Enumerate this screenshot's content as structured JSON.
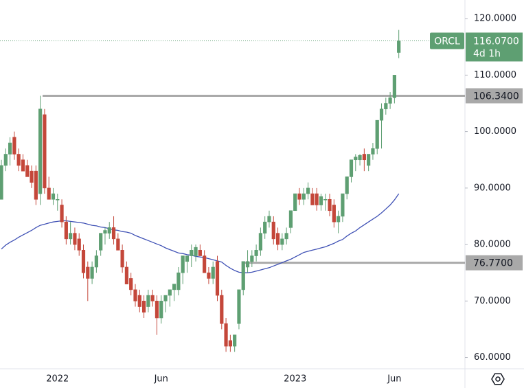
{
  "chart_data": {
    "type": "candlestick",
    "symbol": "ORCL",
    "categories": [
      null,
      null,
      null,
      null,
      null,
      null,
      null,
      null,
      null,
      null,
      null,
      null,
      null,
      "2022",
      null,
      null,
      null,
      null,
      null,
      null,
      null,
      null,
      null,
      null,
      null,
      null,
      null,
      null,
      null,
      null,
      null,
      null,
      null,
      null,
      null,
      null,
      null,
      "Jun",
      null,
      null,
      null,
      null,
      null,
      null,
      null,
      null,
      null,
      null,
      null,
      null,
      null,
      null,
      null,
      null,
      null,
      null,
      null,
      null,
      null,
      null,
      null,
      null,
      null,
      null,
      null,
      null,
      null,
      null,
      "2023",
      null,
      null,
      null,
      null,
      null,
      null,
      null,
      null,
      null,
      null,
      null,
      null,
      null,
      null,
      null,
      null,
      null,
      null,
      null,
      null,
      null,
      null,
      "Jun",
      null
    ],
    "open": [
      88,
      94,
      96,
      99,
      96,
      95,
      94,
      93,
      93,
      89,
      103,
      90,
      88,
      88,
      87,
      84,
      81,
      82,
      81,
      79,
      76,
      74,
      76,
      79,
      82,
      82,
      83,
      81,
      79,
      76,
      74,
      72,
      71,
      70,
      69,
      71,
      70,
      67,
      70,
      71,
      72,
      72,
      75,
      77,
      78,
      78,
      79,
      78,
      75,
      74,
      77,
      71,
      66,
      63,
      62,
      66,
      72,
      76,
      77,
      78,
      79,
      82,
      84,
      84,
      82,
      80,
      81,
      83,
      86,
      89,
      88,
      89,
      89,
      89,
      87,
      88,
      88,
      87,
      84,
      85,
      89,
      92,
      95,
      95,
      96,
      94,
      96,
      97,
      102,
      104,
      105,
      106,
      114
    ],
    "high": [
      95,
      97,
      99,
      100,
      97,
      96,
      95,
      94,
      94,
      106.34,
      104,
      92,
      90,
      89,
      88,
      85,
      84,
      83,
      82,
      80,
      77,
      77,
      79,
      82,
      83,
      84,
      85,
      82,
      80,
      77,
      75,
      73,
      72,
      71,
      72,
      72,
      71,
      71,
      71,
      72,
      73,
      76,
      78,
      78,
      80,
      80,
      80,
      79,
      76,
      77,
      78,
      72,
      67,
      64,
      64,
      72,
      77,
      79,
      79,
      80,
      83,
      85,
      86,
      85,
      83,
      82,
      83,
      86,
      89,
      90,
      90,
      91,
      90,
      90,
      89,
      89,
      89,
      88,
      86,
      89,
      92,
      95,
      96,
      96,
      97,
      96,
      98,
      102,
      105,
      106,
      107,
      110,
      118
    ],
    "low": [
      88,
      93,
      94,
      95,
      93,
      93,
      92,
      90,
      87,
      87,
      89,
      88,
      87,
      86,
      83,
      80,
      80,
      79,
      78,
      74,
      70,
      73,
      75,
      78,
      80,
      81,
      80,
      79,
      75,
      73,
      71,
      69,
      68,
      67,
      68,
      69,
      64,
      66,
      68,
      69,
      70,
      71,
      73,
      75,
      76,
      77,
      78,
      75,
      73,
      73,
      70,
      65,
      61,
      61,
      61,
      65,
      71,
      75,
      76,
      77,
      78,
      81,
      83,
      80,
      79,
      79,
      80,
      82,
      86,
      87,
      87,
      88,
      87,
      86,
      86,
      86,
      85,
      83,
      82,
      84,
      88,
      91,
      93,
      94,
      93,
      93,
      95,
      96,
      97,
      103,
      104,
      105,
      113
    ],
    "close": [
      94,
      96,
      98,
      96,
      94,
      93,
      92,
      91,
      88,
      104,
      90,
      88,
      89,
      88,
      84,
      81,
      82,
      80,
      79,
      75,
      74,
      76,
      78,
      82,
      82.5,
      83,
      81,
      79,
      76,
      73,
      72,
      70,
      69,
      68,
      71,
      70,
      67,
      70,
      71,
      72,
      73,
      75,
      78,
      78,
      79,
      79.5,
      78,
      75,
      74,
      76,
      71,
      66,
      62,
      62,
      64,
      72,
      77,
      77,
      78,
      79,
      82,
      84,
      85,
      81,
      80,
      81,
      82,
      86,
      89,
      88,
      89,
      90,
      87,
      87,
      88.5,
      88,
      86,
      84,
      85,
      89,
      92,
      95,
      95.5,
      95.8,
      95,
      96,
      97,
      102,
      104,
      105,
      106,
      110,
      116.07
    ],
    "ma": {
      "color": "#3f51b5",
      "values": [
        79.2,
        79.9,
        80.4,
        80.8,
        81.3,
        81.7,
        82.1,
        82.5,
        83.0,
        83.4,
        83.6,
        83.8,
        84.0,
        84.1,
        84.2,
        84.2,
        84.1,
        84.0,
        83.9,
        83.8,
        83.6,
        83.4,
        83.3,
        83.1,
        83.0,
        82.8,
        82.6,
        82.5,
        82.3,
        82.2,
        82.0,
        81.6,
        81.3,
        81.0,
        80.7,
        80.4,
        80.1,
        79.8,
        79.4,
        79.1,
        78.8,
        78.5,
        78.4,
        78.2,
        78.1,
        77.9,
        77.8,
        77.7,
        77.5,
        77.3,
        77.1,
        76.9,
        76.3,
        75.8,
        75.4,
        75.1,
        75.0,
        75.0,
        75.1,
        75.3,
        75.5,
        75.7,
        75.9,
        76.2,
        76.5,
        76.8,
        77.1,
        77.4,
        77.8,
        78.2,
        78.6,
        78.8,
        79.0,
        79.2,
        79.4,
        79.6,
        79.9,
        80.2,
        80.6,
        80.9,
        81.5,
        82.0,
        82.4,
        83.0,
        83.5,
        84.0,
        84.5,
        85.0,
        85.6,
        86.3,
        87.0,
        87.9,
        89.0
      ]
    },
    "up_color": "#5e9f72",
    "down_color": "#c4473a",
    "level_color": "#a9a9a9",
    "levels": [
      {
        "value": 106.34,
        "label": "106.3400"
      },
      {
        "value": 76.77,
        "label": "76.7700"
      }
    ],
    "last_price": {
      "label": "116.0700",
      "countdown": "4d 1h"
    },
    "ylim": [
      58,
      123.3
    ],
    "yticks": [
      {
        "value": 60,
        "label": "60.0000"
      },
      {
        "value": 70,
        "label": "70.0000"
      },
      {
        "value": 80,
        "label": "80.0000"
      },
      {
        "value": 90,
        "label": "90.0000"
      },
      {
        "value": 100,
        "label": "100.0000"
      },
      {
        "value": 110,
        "label": "110.0000"
      },
      {
        "value": 120,
        "label": "120.0000"
      }
    ]
  }
}
